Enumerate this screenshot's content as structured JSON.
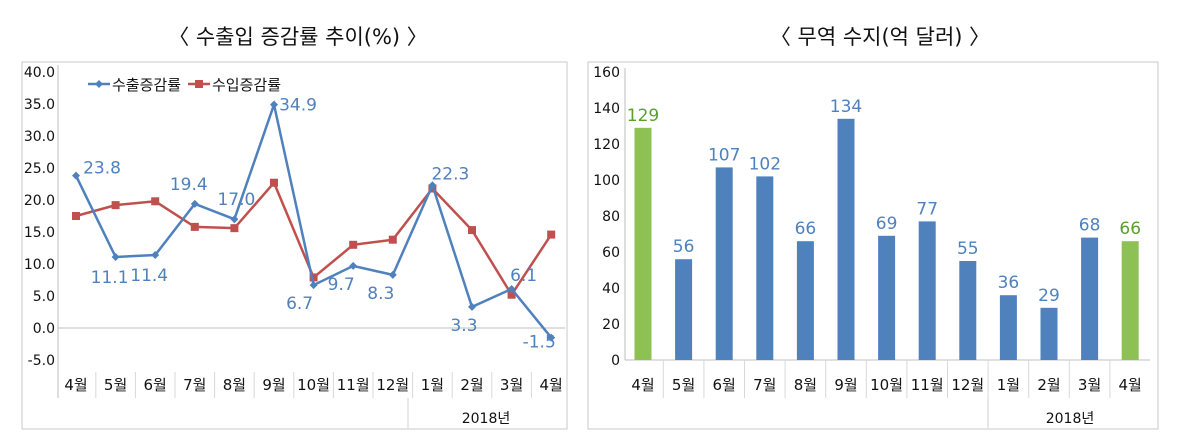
{
  "chart_data": [
    {
      "type": "line",
      "title": "〈 수출입 증감률 추이(%) 〉",
      "categories": [
        "4월",
        "5월",
        "6월",
        "7월",
        "8월",
        "9월",
        "10월",
        "11월",
        "12월",
        "1월",
        "2월",
        "3월",
        "4월"
      ],
      "group_label": "2018년",
      "series": [
        {
          "name": "수출증감률",
          "color": "#4f81bd",
          "values": [
            23.8,
            11.1,
            11.4,
            19.4,
            17.0,
            34.9,
            6.7,
            9.7,
            8.3,
            22.3,
            3.3,
            6.1,
            -1.5
          ],
          "labels": [
            "23.8",
            "11.1",
            "11.4",
            "19.4",
            "17.0",
            "34.9",
            "6.7",
            "9.7",
            "8.3",
            "22.3",
            "3.3",
            "6.1",
            "-1.5"
          ]
        },
        {
          "name": "수입증감률",
          "color": "#c0504d",
          "values": [
            17.5,
            19.2,
            19.8,
            15.8,
            15.6,
            22.7,
            7.9,
            13.0,
            13.8,
            21.8,
            15.3,
            5.2,
            14.6
          ]
        }
      ],
      "yticks": [
        "40.0",
        "35.0",
        "30.0",
        "25.0",
        "20.0",
        "15.0",
        "10.0",
        "5.0",
        "0.0",
        "-5.0"
      ],
      "ylim": [
        -5,
        40
      ]
    },
    {
      "type": "bar",
      "title": "〈 무역 수지(억 달러) 〉",
      "categories": [
        "4월",
        "5월",
        "6월",
        "7월",
        "8월",
        "9월",
        "10월",
        "11월",
        "12월",
        "1월",
        "2월",
        "3월",
        "4월"
      ],
      "group_label": "2018년",
      "values": [
        129,
        56,
        107,
        102,
        66,
        134,
        69,
        77,
        55,
        36,
        29,
        68,
        66
      ],
      "labels": [
        "129",
        "56",
        "107",
        "102",
        "66",
        "134",
        "69",
        "77",
        "55",
        "36",
        "29",
        "68",
        "66"
      ],
      "highlight": [
        0,
        12
      ],
      "colors": {
        "bar": "#4f81bd",
        "highlight": "#8ec153",
        "bar_label": "#4f81bd",
        "highlight_label": "#5aa02c"
      },
      "yticks": [
        "160",
        "140",
        "120",
        "100",
        "80",
        "60",
        "40",
        "20",
        "0"
      ],
      "ylim": [
        0,
        160
      ]
    }
  ]
}
